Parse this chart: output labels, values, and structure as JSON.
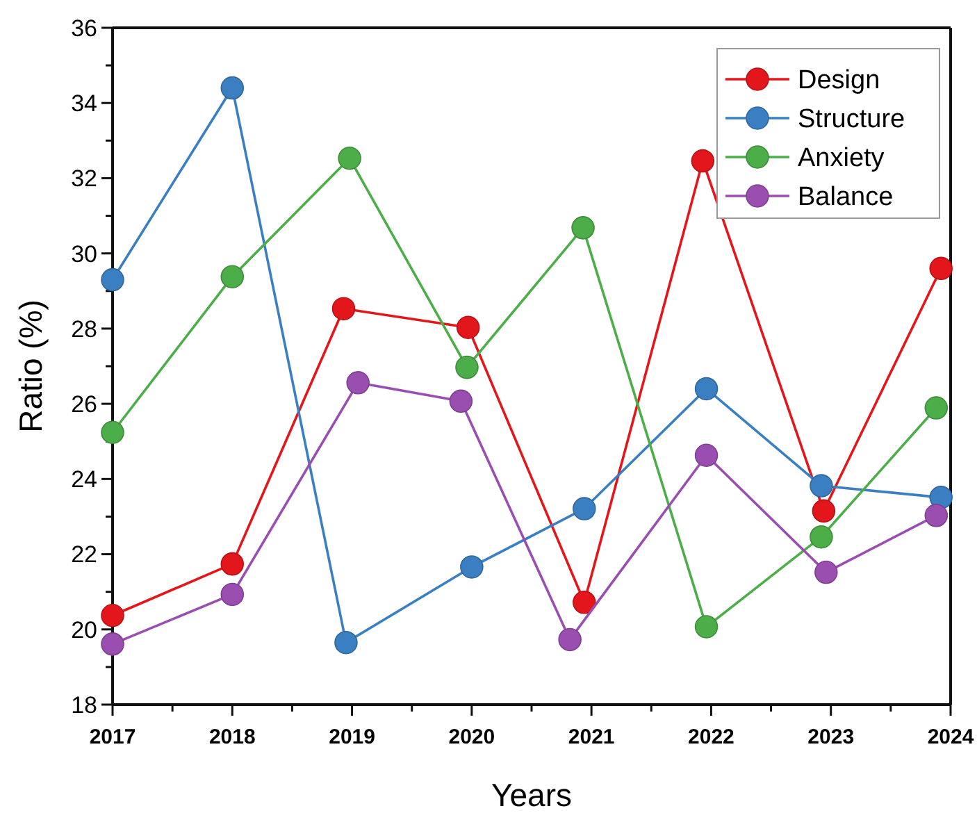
{
  "chart_data": {
    "type": "line",
    "xlabel": "Years",
    "ylabel": "Ratio (%)",
    "xlim": [
      2017,
      2024
    ],
    "xticks": [
      2017,
      {
        "value": 2017.5,
        "label": null
      },
      2018,
      {
        "value": 2018.5,
        "label": null
      },
      2019,
      {
        "value": 2019.5,
        "label": null
      },
      2020,
      {
        "value": 2020.5,
        "label": null
      },
      2021,
      {
        "value": 2021.5,
        "label": null
      },
      2022,
      {
        "value": 2022.5,
        "label": null
      },
      2023,
      {
        "value": 2023.5,
        "label": null
      },
      2024
    ],
    "ylim": [
      18,
      36
    ],
    "yticks": [
      18,
      {
        "value": 19,
        "label": null
      },
      20,
      {
        "value": 21,
        "label": null
      },
      22,
      {
        "value": 23,
        "label": null
      },
      24,
      {
        "value": 25,
        "label": null
      },
      26,
      {
        "value": 27,
        "label": null
      },
      28,
      {
        "value": 29,
        "label": null
      },
      30,
      {
        "value": 31,
        "label": null
      },
      32,
      {
        "value": 33,
        "label": null
      },
      34,
      {
        "value": 35,
        "label": null
      },
      36
    ],
    "grid": false,
    "legend": "top right",
    "marker": "circle",
    "line_style": "solid",
    "series": [
      {
        "name": "Design",
        "color": "#e3161b",
        "x": [
          2017,
          2018,
          2018.93,
          2019.97,
          2020.94,
          2021.93,
          2022.94,
          2023.92
        ],
        "values": [
          20.37,
          21.74,
          28.53,
          28.03,
          20.72,
          32.46,
          23.15,
          29.6
        ]
      },
      {
        "name": "Structure",
        "color": "#3a7fc1",
        "x": [
          2017,
          2018,
          2018.95,
          2020,
          2020.94,
          2021.96,
          2022.92,
          2023.92
        ],
        "values": [
          29.3,
          34.4,
          19.65,
          21.66,
          23.21,
          26.4,
          23.82,
          23.51
        ]
      },
      {
        "name": "Anxiety",
        "color": "#4bae48",
        "x": [
          2017,
          2018,
          2018.98,
          2019.96,
          2020.93,
          2021.96,
          2022.92,
          2023.88
        ],
        "values": [
          25.24,
          29.38,
          32.53,
          26.97,
          30.68,
          20.07,
          22.46,
          25.89
        ]
      },
      {
        "name": "Balance",
        "color": "#9a4fb0",
        "x": [
          2017,
          2018,
          2019.05,
          2019.91,
          2020.82,
          2021.96,
          2022.96,
          2023.88
        ],
        "values": [
          19.61,
          20.93,
          26.56,
          26.07,
          19.73,
          24.63,
          21.52,
          23.03
        ]
      }
    ]
  }
}
